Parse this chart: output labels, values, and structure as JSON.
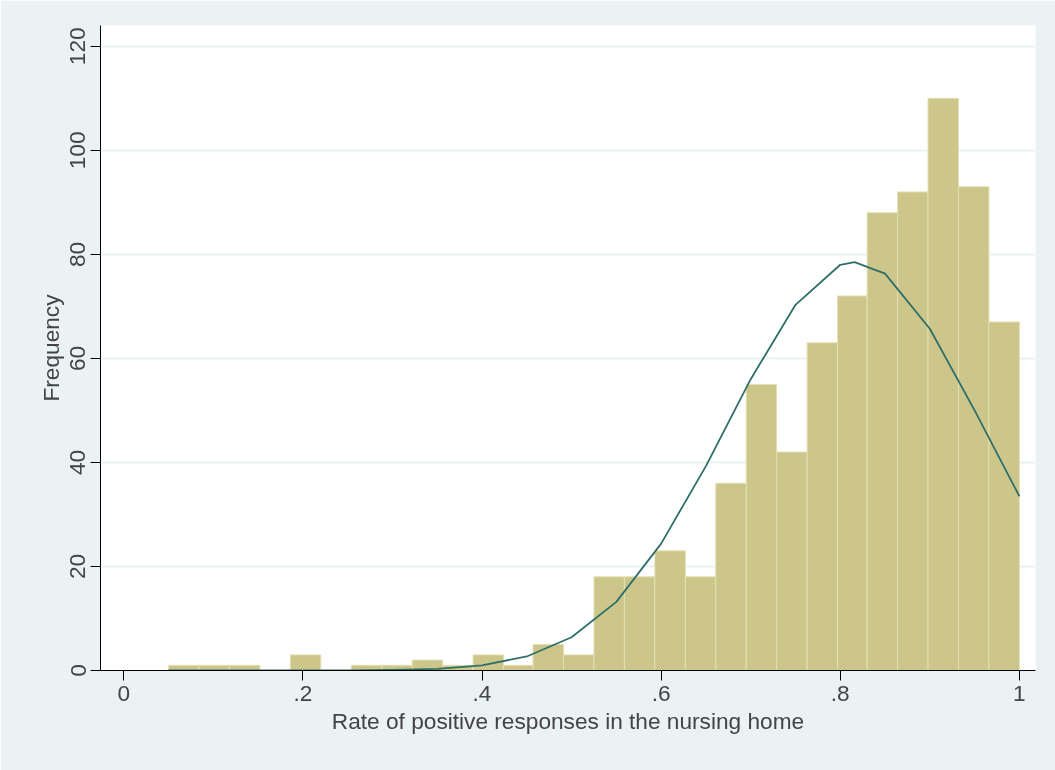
{
  "chart_data": {
    "type": "histogram",
    "xlabel": "Rate of positive responses in the nursing home",
    "ylabel": "Frequency",
    "bins": [
      0.05,
      0.084,
      0.118,
      0.152,
      0.186,
      0.22,
      0.254,
      0.288,
      0.322,
      0.356,
      0.39,
      0.424,
      0.457,
      0.491,
      0.525,
      0.559,
      0.593,
      0.627,
      0.661,
      0.695,
      0.729,
      0.763,
      0.797,
      0.83,
      0.864,
      0.898,
      0.932,
      0.966,
      1.0
    ],
    "values": [
      1,
      1,
      1,
      0,
      3,
      0,
      1,
      1,
      2,
      1,
      3,
      1,
      5,
      3,
      18,
      18,
      23,
      18,
      36,
      55,
      42,
      63,
      72,
      88,
      92,
      110,
      93,
      67
    ],
    "color": "#cdc68a",
    "series": [
      {
        "type": "line",
        "color": "#2f6f6a",
        "x": [
          0.05,
          0.1,
          0.15,
          0.2,
          0.25,
          0.3,
          0.35,
          0.4,
          0.45,
          0.5,
          0.55,
          0.6,
          0.65,
          0.7,
          0.75,
          0.8,
          0.816,
          0.85,
          0.9,
          0.95,
          1.0
        ],
        "values": [
          0,
          0,
          0,
          0,
          0,
          0.1,
          0.3,
          1.0,
          2.7,
          6.4,
          13.2,
          24.4,
          39.3,
          56.0,
          70.3,
          78.0,
          78.5,
          76.3,
          65.7,
          50.0,
          33.5
        ]
      }
    ],
    "xlim": [
      -0.026,
      1.018
    ],
    "ylim": [
      0,
      124
    ],
    "xticks": [
      0,
      {
        "value": 0.2,
        "label": ".2"
      },
      {
        "value": 0.4,
        "label": ".4"
      },
      {
        "value": 0.6,
        "label": ".6"
      },
      {
        "value": 0.8,
        "label": ".8"
      },
      1
    ],
    "yticks": [
      0,
      20,
      40,
      60,
      80,
      100,
      120
    ],
    "grid": "y"
  }
}
